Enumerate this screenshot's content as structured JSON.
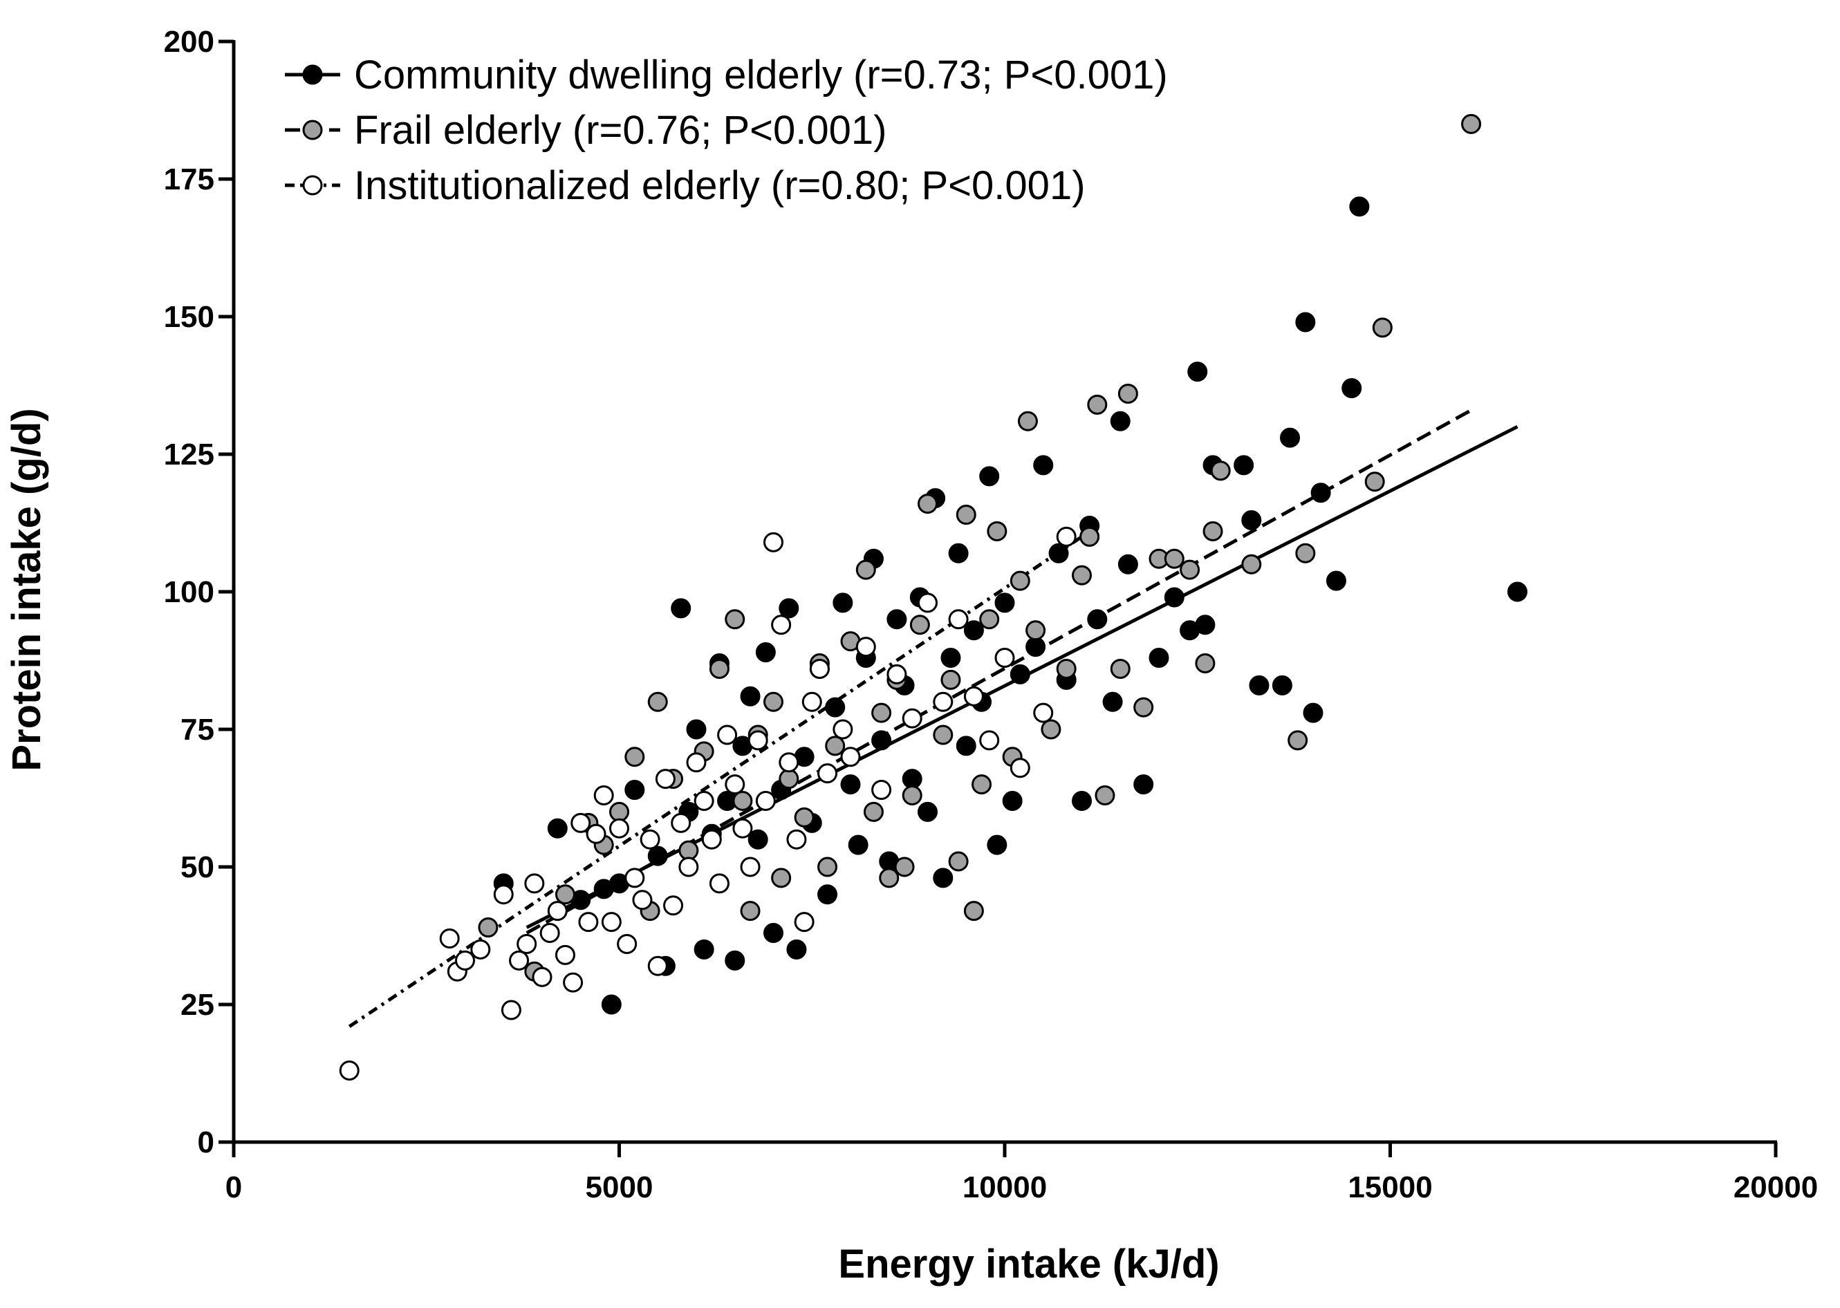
{
  "chart_data": {
    "type": "scatter",
    "title": "",
    "xlabel": "Energy intake (kJ/d)",
    "ylabel": "Protein intake (g/d)",
    "xlim": [
      0,
      20000
    ],
    "ylim": [
      0,
      200
    ],
    "x_ticks": [
      0,
      5000,
      10000,
      15000,
      20000
    ],
    "x_tick_labels": [
      "0",
      "5000",
      "10000",
      "15000",
      "20000"
    ],
    "y_ticks": [
      0,
      25,
      50,
      75,
      100,
      125,
      150,
      175,
      200
    ],
    "y_tick_labels": [
      "0",
      "25",
      "50",
      "75",
      "100",
      "125",
      "150",
      "175",
      "200"
    ],
    "grid": false,
    "legend_position": "top-left",
    "series": [
      {
        "name": "Community dwelling elderly (r=0.73; P<0.001)",
        "marker_fill": "#000000",
        "line_style": "solid",
        "regression": {
          "x": [
            3800,
            16650
          ],
          "y": [
            39,
            130
          ]
        },
        "points": [
          [
            3500,
            47
          ],
          [
            4200,
            57
          ],
          [
            4500,
            44
          ],
          [
            4800,
            46
          ],
          [
            4900,
            25
          ],
          [
            5000,
            47
          ],
          [
            5200,
            64
          ],
          [
            5500,
            52
          ],
          [
            5600,
            32
          ],
          [
            5800,
            97
          ],
          [
            5900,
            60
          ],
          [
            6000,
            75
          ],
          [
            6100,
            35
          ],
          [
            6200,
            56
          ],
          [
            6300,
            87
          ],
          [
            6400,
            62
          ],
          [
            6500,
            33
          ],
          [
            6600,
            72
          ],
          [
            6700,
            81
          ],
          [
            6800,
            55
          ],
          [
            6900,
            89
          ],
          [
            7000,
            38
          ],
          [
            7100,
            64
          ],
          [
            7200,
            97
          ],
          [
            7300,
            35
          ],
          [
            7400,
            70
          ],
          [
            7500,
            58
          ],
          [
            7600,
            86
          ],
          [
            7700,
            45
          ],
          [
            7800,
            79
          ],
          [
            7900,
            98
          ],
          [
            8000,
            65
          ],
          [
            8100,
            54
          ],
          [
            8200,
            88
          ],
          [
            8300,
            106
          ],
          [
            8400,
            73
          ],
          [
            8500,
            51
          ],
          [
            8600,
            95
          ],
          [
            8700,
            83
          ],
          [
            8800,
            66
          ],
          [
            8900,
            99
          ],
          [
            9000,
            60
          ],
          [
            9100,
            117
          ],
          [
            9200,
            48
          ],
          [
            9300,
            88
          ],
          [
            9400,
            107
          ],
          [
            9500,
            72
          ],
          [
            9600,
            93
          ],
          [
            9700,
            80
          ],
          [
            9800,
            121
          ],
          [
            9900,
            54
          ],
          [
            10000,
            98
          ],
          [
            10100,
            62
          ],
          [
            10200,
            85
          ],
          [
            10400,
            90
          ],
          [
            10500,
            123
          ],
          [
            10700,
            107
          ],
          [
            10800,
            84
          ],
          [
            11000,
            62
          ],
          [
            11100,
            112
          ],
          [
            11200,
            95
          ],
          [
            11400,
            80
          ],
          [
            11500,
            131
          ],
          [
            11600,
            105
          ],
          [
            11800,
            65
          ],
          [
            12000,
            88
          ],
          [
            12200,
            99
          ],
          [
            12400,
            93
          ],
          [
            12500,
            140
          ],
          [
            12600,
            94
          ],
          [
            12700,
            123
          ],
          [
            13100,
            123
          ],
          [
            13200,
            113
          ],
          [
            13300,
            83
          ],
          [
            13600,
            83
          ],
          [
            13700,
            128
          ],
          [
            13900,
            149
          ],
          [
            14000,
            78
          ],
          [
            14100,
            118
          ],
          [
            14300,
            102
          ],
          [
            14500,
            137
          ],
          [
            14600,
            170
          ],
          [
            16650,
            100
          ]
        ]
      },
      {
        "name": "Frail elderly (r=0.76; P<0.001)",
        "marker_fill": "#a0a0a0",
        "line_style": "dashed",
        "regression": {
          "x": [
            3800,
            16050
          ],
          "y": [
            38,
            133
          ]
        },
        "points": [
          [
            3300,
            39
          ],
          [
            3900,
            31
          ],
          [
            4300,
            45
          ],
          [
            4600,
            58
          ],
          [
            4800,
            54
          ],
          [
            5000,
            60
          ],
          [
            5200,
            70
          ],
          [
            5400,
            42
          ],
          [
            5500,
            80
          ],
          [
            5700,
            66
          ],
          [
            5900,
            53
          ],
          [
            6100,
            71
          ],
          [
            6300,
            86
          ],
          [
            6500,
            95
          ],
          [
            6600,
            62
          ],
          [
            6700,
            42
          ],
          [
            6800,
            74
          ],
          [
            7000,
            80
          ],
          [
            7100,
            48
          ],
          [
            7200,
            66
          ],
          [
            7400,
            59
          ],
          [
            7600,
            87
          ],
          [
            7700,
            50
          ],
          [
            7800,
            72
          ],
          [
            8000,
            91
          ],
          [
            8200,
            104
          ],
          [
            8300,
            60
          ],
          [
            8400,
            78
          ],
          [
            8500,
            48
          ],
          [
            8600,
            84
          ],
          [
            8700,
            50
          ],
          [
            8800,
            63
          ],
          [
            8900,
            94
          ],
          [
            9000,
            116
          ],
          [
            9200,
            74
          ],
          [
            9300,
            84
          ],
          [
            9400,
            51
          ],
          [
            9500,
            114
          ],
          [
            9600,
            42
          ],
          [
            9700,
            65
          ],
          [
            9800,
            95
          ],
          [
            9900,
            111
          ],
          [
            10100,
            70
          ],
          [
            10200,
            102
          ],
          [
            10300,
            131
          ],
          [
            10400,
            93
          ],
          [
            10600,
            75
          ],
          [
            10800,
            86
          ],
          [
            11000,
            103
          ],
          [
            11100,
            110
          ],
          [
            11200,
            134
          ],
          [
            11300,
            63
          ],
          [
            11500,
            86
          ],
          [
            11600,
            136
          ],
          [
            11800,
            79
          ],
          [
            12000,
            106
          ],
          [
            12200,
            106
          ],
          [
            12400,
            104
          ],
          [
            12600,
            87
          ],
          [
            12700,
            111
          ],
          [
            12800,
            122
          ],
          [
            13200,
            105
          ],
          [
            13800,
            73
          ],
          [
            13900,
            107
          ],
          [
            14800,
            120
          ],
          [
            14900,
            148
          ],
          [
            16050,
            185
          ]
        ]
      },
      {
        "name": "Institutionalized elderly (r=0.80; P<0.001)",
        "marker_fill": "#ffffff",
        "line_style": "dash-dot",
        "regression": {
          "x": [
            1500,
            11000
          ],
          "y": [
            21,
            110
          ]
        },
        "points": [
          [
            1500,
            13
          ],
          [
            2800,
            37
          ],
          [
            2900,
            31
          ],
          [
            3000,
            33
          ],
          [
            3200,
            35
          ],
          [
            3500,
            45
          ],
          [
            3600,
            24
          ],
          [
            3700,
            33
          ],
          [
            3800,
            36
          ],
          [
            3900,
            47
          ],
          [
            4000,
            30
          ],
          [
            4100,
            38
          ],
          [
            4200,
            42
          ],
          [
            4300,
            34
          ],
          [
            4400,
            29
          ],
          [
            4500,
            58
          ],
          [
            4600,
            40
          ],
          [
            4700,
            56
          ],
          [
            4800,
            63
          ],
          [
            4900,
            40
          ],
          [
            5000,
            57
          ],
          [
            5100,
            36
          ],
          [
            5200,
            48
          ],
          [
            5300,
            44
          ],
          [
            5400,
            55
          ],
          [
            5500,
            32
          ],
          [
            5600,
            66
          ],
          [
            5700,
            43
          ],
          [
            5800,
            58
          ],
          [
            5900,
            50
          ],
          [
            6000,
            69
          ],
          [
            6100,
            62
          ],
          [
            6200,
            55
          ],
          [
            6300,
            47
          ],
          [
            6400,
            74
          ],
          [
            6500,
            65
          ],
          [
            6600,
            57
          ],
          [
            6700,
            50
          ],
          [
            6800,
            73
          ],
          [
            6900,
            62
          ],
          [
            7000,
            109
          ],
          [
            7100,
            94
          ],
          [
            7200,
            69
          ],
          [
            7300,
            55
          ],
          [
            7400,
            40
          ],
          [
            7500,
            80
          ],
          [
            7600,
            86
          ],
          [
            7700,
            67
          ],
          [
            7900,
            75
          ],
          [
            8000,
            70
          ],
          [
            8200,
            90
          ],
          [
            8400,
            64
          ],
          [
            8600,
            85
          ],
          [
            8800,
            77
          ],
          [
            9000,
            98
          ],
          [
            9200,
            80
          ],
          [
            9400,
            95
          ],
          [
            9600,
            81
          ],
          [
            9800,
            73
          ],
          [
            10000,
            88
          ],
          [
            10200,
            68
          ],
          [
            10500,
            78
          ],
          [
            10800,
            110
          ]
        ]
      }
    ]
  }
}
